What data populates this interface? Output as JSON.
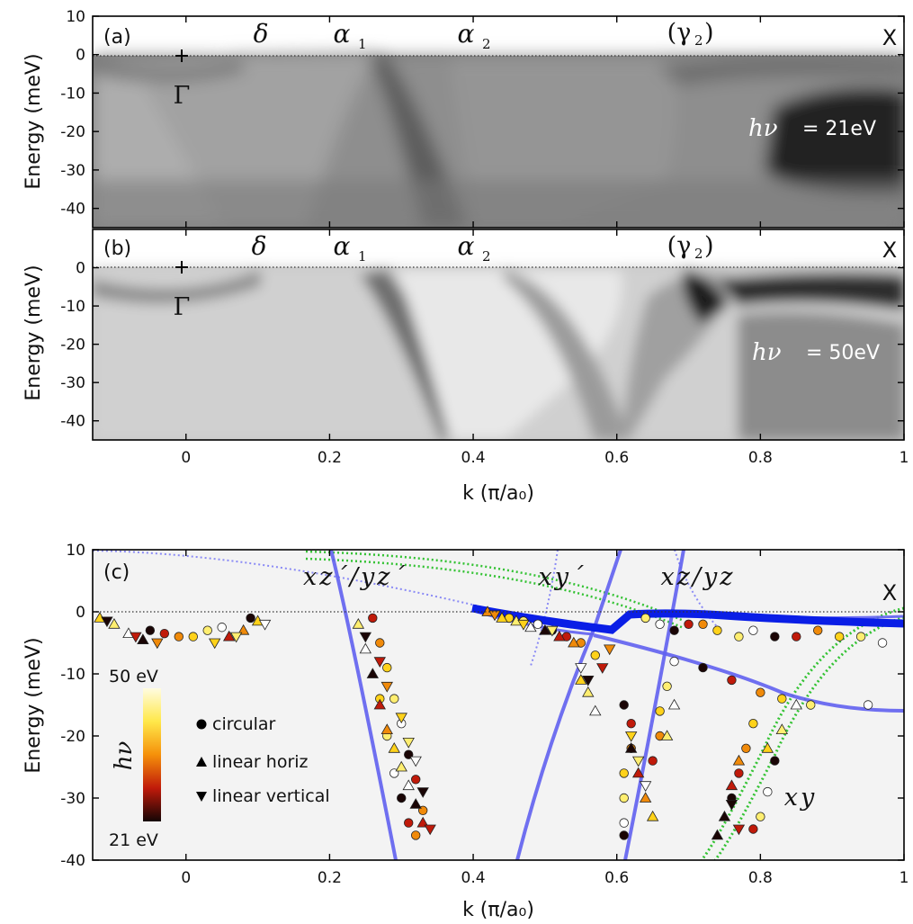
{
  "chart_data": [
    {
      "panel": "(a)",
      "type": "heatmap",
      "ylabel": "Energy (meV)",
      "xlim": [
        -0.13,
        1.0
      ],
      "ylim": [
        -45,
        10
      ],
      "yticks": [
        "10",
        "0",
        "-10",
        "-20",
        "-30",
        "-40"
      ],
      "annotations": {
        "gamma_point": "Γ",
        "x_point": "X",
        "band_labels": [
          {
            "text": "δ",
            "k": 0.11
          },
          {
            "text": "α",
            "sub": "1",
            "k": 0.23
          },
          {
            "text": "α",
            "sub": "2",
            "k": 0.4
          },
          {
            "text": "(γ",
            "sub": "2",
            "close": ")",
            "k": 0.71
          }
        ],
        "photon_energy_symbol": "hν",
        "photon_energy_value": "= 21eV"
      }
    },
    {
      "panel": "(b)",
      "type": "heatmap",
      "ylabel": "Energy (meV)",
      "xlabel": "k (π/a₀)",
      "xlim": [
        -0.13,
        1.0
      ],
      "ylim": [
        -45,
        10
      ],
      "yticks": [
        "0",
        "-10",
        "-20",
        "-30",
        "-40"
      ],
      "xticks": [
        "0",
        "0.2",
        "0.4",
        "0.6",
        "0.8",
        "1"
      ],
      "annotations": {
        "gamma_point": "Γ",
        "x_point": "X",
        "band_labels": [
          {
            "text": "δ",
            "k": 0.11
          },
          {
            "text": "α",
            "sub": "1",
            "k": 0.23
          },
          {
            "text": "α",
            "sub": "2",
            "k": 0.4
          },
          {
            "text": "(γ",
            "sub": "2",
            "close": ")",
            "k": 0.71
          }
        ],
        "photon_energy_symbol": "hν",
        "photon_energy_value": "= 50eV"
      }
    },
    {
      "panel": "(c)",
      "type": "scatter",
      "ylabel": "Energy (meV)",
      "xlabel": "k (π/a₀)",
      "xlim": [
        -0.13,
        1.0
      ],
      "ylim": [
        -40,
        10
      ],
      "yticks": [
        "10",
        "0",
        "-10",
        "-20",
        "-30",
        "-40"
      ],
      "xticks": [
        "0",
        "0.2",
        "0.4",
        "0.6",
        "0.8",
        "1"
      ],
      "x_point": "X",
      "orbital_labels": [
        {
          "text": "xz´/yz´",
          "k": 0.31,
          "e": 6.5
        },
        {
          "text": "xy´",
          "k": 0.51,
          "e": 6.5
        },
        {
          "text": "xz/yz",
          "k": 0.69,
          "e": 6.5
        },
        {
          "text": "xy",
          "k": 0.87,
          "e": -30.5
        }
      ],
      "legend": [
        "circular",
        "linear horiz",
        "linear vertical"
      ],
      "colorbar": {
        "symbol": "hν",
        "top": "50 eV",
        "bottom": "21 eV"
      },
      "series": [
        {
          "name": "circular",
          "marker": "circle",
          "points": [
            [
              -0.05,
              -3
            ],
            [
              -0.03,
              -3.5
            ],
            [
              -0.01,
              -4
            ],
            [
              0.01,
              -4
            ],
            [
              0.03,
              -3
            ],
            [
              0.05,
              -2.5
            ],
            [
              0.09,
              -1
            ],
            [
              0.26,
              -1
            ],
            [
              0.27,
              -5
            ],
            [
              0.28,
              -9
            ],
            [
              0.29,
              -14
            ],
            [
              0.3,
              -18
            ],
            [
              0.31,
              -23
            ],
            [
              0.32,
              -27
            ],
            [
              0.33,
              -32
            ],
            [
              0.27,
              -14
            ],
            [
              0.28,
              -20
            ],
            [
              0.29,
              -26
            ],
            [
              0.3,
              -30
            ],
            [
              0.31,
              -34
            ],
            [
              0.32,
              -36
            ],
            [
              0.45,
              -1
            ],
            [
              0.47,
              -1.5
            ],
            [
              0.49,
              -2
            ],
            [
              0.51,
              -3
            ],
            [
              0.53,
              -4
            ],
            [
              0.55,
              -5
            ],
            [
              0.57,
              -7
            ],
            [
              0.64,
              -1
            ],
            [
              0.66,
              -2
            ],
            [
              0.68,
              -3
            ],
            [
              0.7,
              -2
            ],
            [
              0.72,
              -2
            ],
            [
              0.74,
              -3
            ],
            [
              0.77,
              -4
            ],
            [
              0.79,
              -3
            ],
            [
              0.82,
              -4
            ],
            [
              0.85,
              -4
            ],
            [
              0.88,
              -3
            ],
            [
              0.91,
              -4
            ],
            [
              0.94,
              -4
            ],
            [
              0.97,
              -5
            ],
            [
              0.72,
              -9
            ],
            [
              0.76,
              -11
            ],
            [
              0.8,
              -13
            ],
            [
              0.83,
              -14
            ],
            [
              0.87,
              -15
            ],
            [
              0.95,
              -15
            ],
            [
              0.61,
              -15
            ],
            [
              0.62,
              -18
            ],
            [
              0.62,
              -22
            ],
            [
              0.61,
              -26
            ],
            [
              0.61,
              -30
            ],
            [
              0.61,
              -34
            ],
            [
              0.61,
              -36
            ],
            [
              0.65,
              -24
            ],
            [
              0.66,
              -20
            ],
            [
              0.66,
              -16
            ],
            [
              0.67,
              -12
            ],
            [
              0.68,
              -8
            ],
            [
              0.76,
              -30
            ],
            [
              0.77,
              -26
            ],
            [
              0.78,
              -22
            ],
            [
              0.79,
              -18
            ],
            [
              0.8,
              -33
            ],
            [
              0.81,
              -29
            ],
            [
              0.82,
              -24
            ],
            [
              0.79,
              -35
            ]
          ]
        },
        {
          "name": "linear horiz",
          "marker": "triangle-up",
          "points": [
            [
              -0.12,
              -1
            ],
            [
              -0.1,
              -2
            ],
            [
              -0.08,
              -3.5
            ],
            [
              -0.06,
              -4.5
            ],
            [
              0.06,
              -4
            ],
            [
              0.08,
              -3
            ],
            [
              0.1,
              -1.5
            ],
            [
              0.24,
              -2
            ],
            [
              0.25,
              -6
            ],
            [
              0.26,
              -10
            ],
            [
              0.27,
              -15
            ],
            [
              0.28,
              -19
            ],
            [
              0.29,
              -22
            ],
            [
              0.3,
              -25
            ],
            [
              0.31,
              -28
            ],
            [
              0.32,
              -31
            ],
            [
              0.33,
              -34
            ],
            [
              0.42,
              0
            ],
            [
              0.44,
              -1
            ],
            [
              0.46,
              -1.5
            ],
            [
              0.48,
              -2.5
            ],
            [
              0.5,
              -3
            ],
            [
              0.52,
              -4
            ],
            [
              0.54,
              -5
            ],
            [
              0.55,
              -11
            ],
            [
              0.56,
              -13
            ],
            [
              0.57,
              -16
            ],
            [
              0.62,
              -22
            ],
            [
              0.63,
              -26
            ],
            [
              0.64,
              -30
            ],
            [
              0.65,
              -33
            ],
            [
              0.67,
              -20
            ],
            [
              0.68,
              -15
            ],
            [
              0.75,
              -33
            ],
            [
              0.76,
              -28
            ],
            [
              0.77,
              -24
            ],
            [
              0.81,
              -22
            ],
            [
              0.83,
              -19
            ],
            [
              0.85,
              -15
            ],
            [
              0.74,
              -36
            ]
          ]
        },
        {
          "name": "linear vertical",
          "marker": "triangle-down",
          "points": [
            [
              -0.11,
              -1.5
            ],
            [
              -0.07,
              -4
            ],
            [
              -0.04,
              -5
            ],
            [
              0.04,
              -5
            ],
            [
              0.07,
              -4
            ],
            [
              0.11,
              -2
            ],
            [
              0.25,
              -4
            ],
            [
              0.27,
              -8
            ],
            [
              0.28,
              -12
            ],
            [
              0.3,
              -17
            ],
            [
              0.31,
              -21
            ],
            [
              0.32,
              -24
            ],
            [
              0.33,
              -29
            ],
            [
              0.34,
              -35
            ],
            [
              0.43,
              -0.5
            ],
            [
              0.47,
              -2
            ],
            [
              0.51,
              -3
            ],
            [
              0.55,
              -9
            ],
            [
              0.56,
              -11
            ],
            [
              0.58,
              -9
            ],
            [
              0.59,
              -6
            ],
            [
              0.62,
              -20
            ],
            [
              0.63,
              -24
            ],
            [
              0.64,
              -28
            ],
            [
              0.76,
              -31
            ],
            [
              0.77,
              -35
            ]
          ]
        }
      ],
      "model_lines": [
        {
          "color": "#0a1ee6",
          "style": "thick",
          "label": "xz/yz"
        },
        {
          "color": "#6060f0",
          "style": "solid"
        },
        {
          "color": "#8a8af5",
          "style": "dotted"
        },
        {
          "color": "#33c233",
          "style": "dotted",
          "label": "xy"
        }
      ]
    }
  ]
}
